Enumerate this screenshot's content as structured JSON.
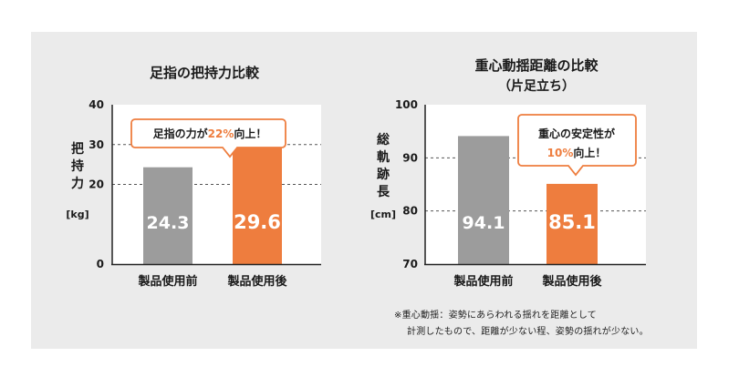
{
  "colors": {
    "gray_bar": "#9c9c9c",
    "orange_bar": "#ee7d3e",
    "accent_text": "#ee7d3e",
    "plot_bg": "#ffffff",
    "panel_bg": "#ebebeb",
    "text": "#1a1a1a"
  },
  "chart_data": [
    {
      "type": "bar",
      "title": "足指の把持力比較",
      "ylabel_lines": [
        "把",
        "持",
        "力"
      ],
      "yunit": "[kg]",
      "ylim": [
        0,
        40
      ],
      "yticks": [
        0,
        20,
        30,
        40
      ],
      "grid": "dashed at 20, 30",
      "categories": [
        "製品使用前",
        "製品使用後"
      ],
      "values": [
        24.3,
        29.6
      ],
      "value_labels": [
        "24.3",
        "29.6"
      ],
      "callout": {
        "prefix": "足指の力が",
        "highlight": "22%",
        "suffix": "向上！"
      }
    },
    {
      "type": "bar",
      "title": "重心動揺距離の比較",
      "subtitle": "（片足立ち）",
      "ylabel_lines": [
        "総",
        "軌",
        "跡",
        "長"
      ],
      "yunit": "[cm]",
      "ylim": [
        70,
        100
      ],
      "yticks": [
        70,
        80,
        90,
        100
      ],
      "grid": "dashed at 80, 90",
      "categories": [
        "製品使用前",
        "製品使用後"
      ],
      "values": [
        94.1,
        85.1
      ],
      "value_labels": [
        "94.1",
        "85.1"
      ],
      "callout": {
        "line1": "重心の安定性が",
        "highlight": "10%",
        "suffix": "向上！"
      }
    }
  ],
  "footnote": {
    "line1": "※重心動揺：姿勢にあらわれる揺れを距離として",
    "line2": "計測したもので、距離が少ない程、姿勢の揺れが少ない。"
  }
}
